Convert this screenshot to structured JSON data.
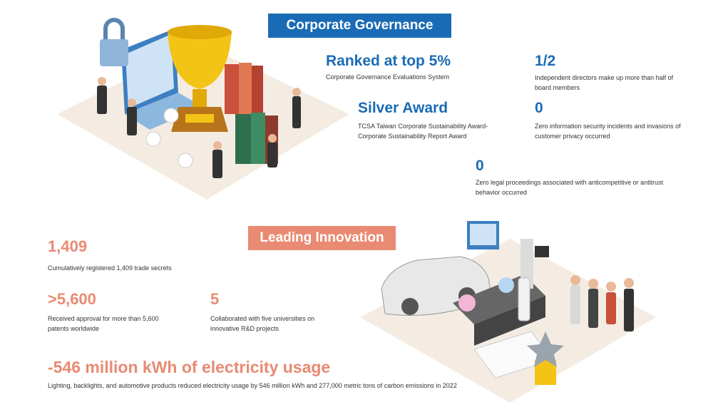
{
  "governance": {
    "title": "Corporate Governance",
    "stats": [
      {
        "value": "Ranked at top 5%",
        "desc": "Corporate Governance Evaluations System"
      },
      {
        "value": "1/2",
        "desc": "Independent directors make up more than half of board members"
      },
      {
        "value": "Silver Award",
        "desc": "TCSA Taiwan Corporate Sustainability Award-Corporate Sustainability Report Award"
      },
      {
        "value": "0",
        "desc": "Zero information security incidents and invasions of customer privacy occurred"
      },
      {
        "value": "0",
        "desc": "Zero legal proceedings associated with anticompetitive or antitrust behavior occurred"
      }
    ]
  },
  "innovation": {
    "title": "Leading Innovation",
    "stats": [
      {
        "value": "1,409",
        "desc": "Cumulatively registered 1,409 trade secrets"
      },
      {
        "value": ">5,600",
        "desc": "Received approval for more than 5,600 patents worldwide"
      },
      {
        "value": "5",
        "desc": "Collaborated with five universities on innovative R&D projects"
      },
      {
        "value": "-546 million kWh of electricity usage",
        "desc": "Lighting, backlights, and automotive products reduced electricity usage by 546 million kWh and 277,000 metric tons of carbon emissions in 2022"
      }
    ]
  },
  "colors": {
    "blue": "#1a6bb5",
    "orange": "#e98a72"
  },
  "illustrations": [
    "governance-illustration",
    "innovation-illustration"
  ]
}
